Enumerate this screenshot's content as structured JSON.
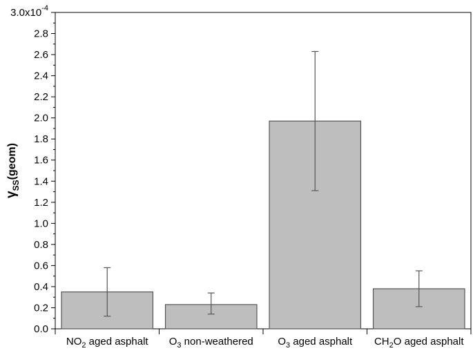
{
  "chart_data": {
    "type": "bar",
    "categories": [
      {
        "parts": [
          {
            "t": "NO"
          },
          {
            "t": "2",
            "sub": true
          },
          {
            "t": " aged asphalt"
          }
        ]
      },
      {
        "parts": [
          {
            "t": "O"
          },
          {
            "t": "3",
            "sub": true
          },
          {
            "t": " non-weathered"
          }
        ]
      },
      {
        "parts": [
          {
            "t": "O"
          },
          {
            "t": "3",
            "sub": true
          },
          {
            "t": " aged asphalt"
          }
        ]
      },
      {
        "parts": [
          {
            "t": "CH"
          },
          {
            "t": "2",
            "sub": true
          },
          {
            "t": "O aged asphalt"
          }
        ]
      }
    ],
    "values": [
      0.35,
      0.23,
      1.97,
      0.38
    ],
    "error_low": [
      0.12,
      0.14,
      1.31,
      0.21
    ],
    "error_high": [
      0.58,
      0.34,
      2.63,
      0.55
    ],
    "ylim": [
      0,
      3.0
    ],
    "yticks": [
      "0.0",
      "0.2",
      "0.4",
      "0.6",
      "0.8",
      "1.0",
      "1.2",
      "1.4",
      "1.6",
      "1.8",
      "2.0",
      "2.2",
      "2.4",
      "2.6",
      "2.8"
    ],
    "ytick_top": {
      "base": "3.0x10",
      "exp": "-4"
    },
    "ylabel": {
      "main": "γ",
      "sub": "SS",
      "suffix": "(geom)"
    },
    "bar_color": "#bebebe",
    "bar_edge": "#555555",
    "error_color": "#555555"
  }
}
